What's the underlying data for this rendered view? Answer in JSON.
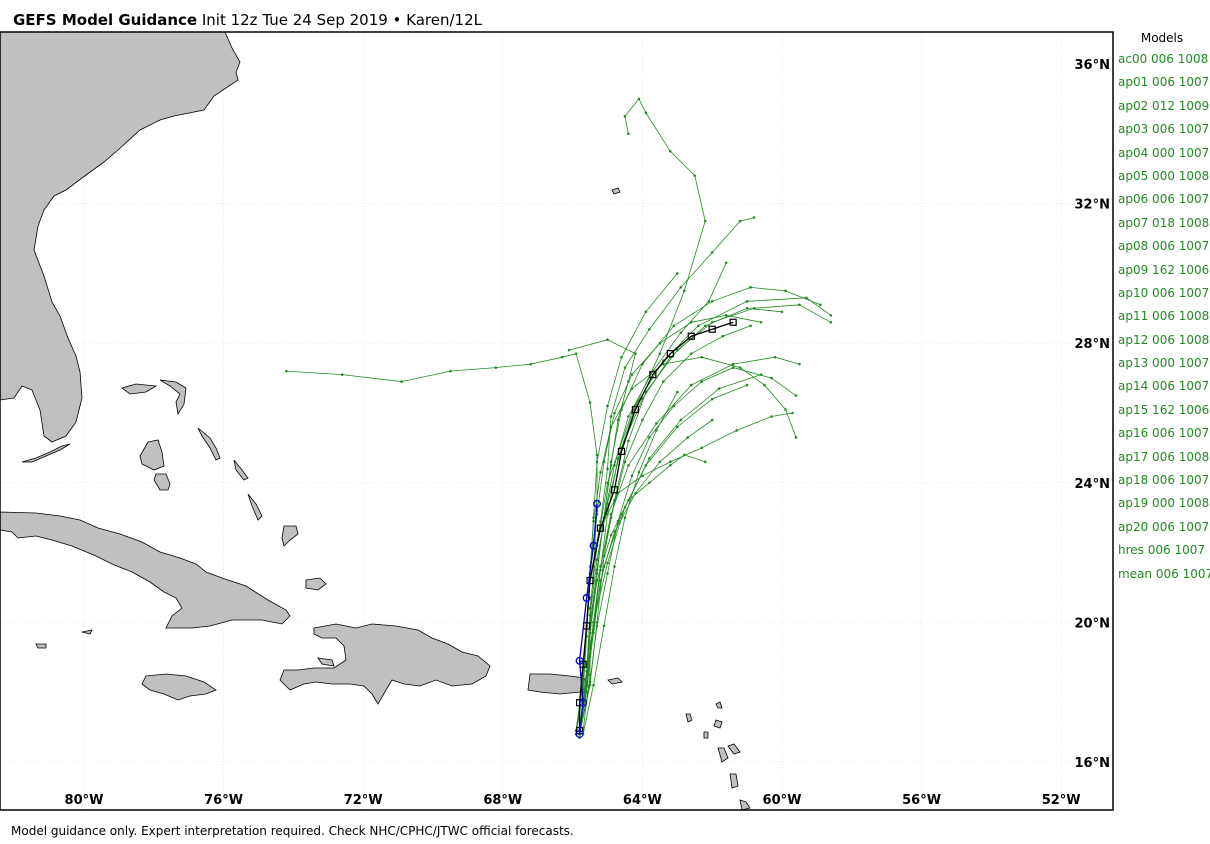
{
  "title": {
    "bold": "GEFS Model Guidance",
    "rest": " Init 12z Tue 24 Sep 2019 • Karen/12L"
  },
  "legend": {
    "header": "Models",
    "entries": [
      "ac00 006 1008",
      "ap01 006 1007",
      "ap02 012 1009",
      "ap03 006 1007",
      "ap04 000 1007",
      "ap05 000 1008",
      "ap06 006 1007",
      "ap07 018 1008",
      "ap08 006 1007",
      "ap09 162 1006",
      "ap10 006 1007",
      "ap11 006 1008",
      "ap12 006 1008",
      "ap13 000 1007",
      "ap14 006 1007",
      "ap15 162 1006",
      "ap16 006 1007",
      "ap17 006 1008",
      "ap18 006 1007",
      "ap19 000 1008",
      "ap20 006 1007",
      "hres 006 1007",
      "mean 006 1007"
    ]
  },
  "footer": "Model guidance only. Expert interpretation required. Check NHC/CPHC/JTWC official forecasts.",
  "colors": {
    "land": "#c0c0c0",
    "ensemble": "#228b22",
    "mean": "#000000",
    "hres": "#0000cd",
    "grid": "#dddddd"
  },
  "map_data": {
    "lon_ticks": [
      -80,
      -76,
      -72,
      -68,
      -64,
      -60,
      -56,
      -52
    ],
    "lon_labels": [
      "80°W",
      "76°W",
      "72°W",
      "68°W",
      "64°W",
      "60°W",
      "56°W",
      "52°W"
    ],
    "lat_ticks": [
      36,
      32,
      28,
      24,
      20,
      16
    ],
    "lat_labels": [
      "36°N",
      "32°N",
      "28°N",
      "24°N",
      "20°N",
      "16°N"
    ],
    "ensemble_tracks": [
      [
        [
          -65.8,
          16.9
        ],
        [
          -65.6,
          18.0
        ],
        [
          -65.4,
          19.8
        ],
        [
          -65.2,
          21.6
        ],
        [
          -64.9,
          23.0
        ],
        [
          -64.5,
          24.6
        ],
        [
          -64.0,
          25.8
        ],
        [
          -63.4,
          26.9
        ],
        [
          -62.6,
          27.7
        ],
        [
          -61.7,
          28.2
        ],
        [
          -60.9,
          28.5
        ]
      ],
      [
        [
          -65.8,
          16.8
        ],
        [
          -65.5,
          18.2
        ],
        [
          -65.3,
          20.0
        ],
        [
          -65.1,
          21.9
        ],
        [
          -64.8,
          23.5
        ],
        [
          -64.4,
          25.2
        ],
        [
          -63.9,
          26.6
        ],
        [
          -63.0,
          27.8
        ],
        [
          -62.0,
          28.6
        ],
        [
          -60.8,
          29.0
        ],
        [
          -59.5,
          29.1
        ],
        [
          -58.6,
          28.6
        ]
      ],
      [
        [
          -65.7,
          16.9
        ],
        [
          -65.5,
          18.5
        ],
        [
          -65.5,
          20.4
        ],
        [
          -65.3,
          22.2
        ],
        [
          -65.0,
          24.0
        ],
        [
          -64.3,
          26.0
        ],
        [
          -63.5,
          27.7
        ],
        [
          -62.8,
          29.5
        ],
        [
          -62.2,
          31.5
        ],
        [
          -62.5,
          32.8
        ],
        [
          -63.2,
          33.5
        ],
        [
          -63.9,
          34.6
        ],
        [
          -64.1,
          35.0
        ],
        [
          -64.5,
          34.5
        ],
        [
          -64.4,
          34.0
        ]
      ],
      [
        [
          -65.9,
          16.8
        ],
        [
          -65.7,
          18.0
        ],
        [
          -65.6,
          19.6
        ],
        [
          -65.5,
          21.2
        ],
        [
          -65.2,
          22.9
        ],
        [
          -65.0,
          24.4
        ],
        [
          -64.9,
          25.9
        ],
        [
          -64.5,
          27.3
        ],
        [
          -63.8,
          28.4
        ],
        [
          -62.9,
          29.6
        ],
        [
          -62.0,
          30.6
        ],
        [
          -61.2,
          31.5
        ],
        [
          -60.8,
          31.6
        ]
      ],
      [
        [
          -65.8,
          16.7
        ],
        [
          -65.6,
          18.3
        ],
        [
          -65.4,
          20.0
        ],
        [
          -65.0,
          21.7
        ],
        [
          -64.5,
          23.3
        ],
        [
          -63.8,
          24.7
        ],
        [
          -62.9,
          25.8
        ],
        [
          -61.8,
          26.7
        ],
        [
          -60.6,
          27.1
        ]
      ],
      [
        [
          -65.8,
          16.9
        ],
        [
          -65.6,
          18.2
        ],
        [
          -65.5,
          19.8
        ],
        [
          -65.3,
          21.4
        ],
        [
          -65.1,
          23.0
        ],
        [
          -64.9,
          24.6
        ],
        [
          -64.6,
          26.1
        ],
        [
          -64.0,
          27.4
        ],
        [
          -63.1,
          28.5
        ],
        [
          -62.0,
          29.2
        ],
        [
          -60.9,
          29.6
        ],
        [
          -59.9,
          29.5
        ],
        [
          -58.9,
          29.1
        ]
      ],
      [
        [
          -65.8,
          17.0
        ],
        [
          -65.6,
          18.6
        ],
        [
          -65.5,
          20.2
        ],
        [
          -65.3,
          21.8
        ],
        [
          -65.0,
          23.4
        ],
        [
          -64.6,
          25.0
        ],
        [
          -64.0,
          26.4
        ],
        [
          -63.2,
          27.6
        ],
        [
          -62.2,
          28.5
        ],
        [
          -61.0,
          29.0
        ],
        [
          -60.0,
          28.9
        ]
      ],
      [
        [
          -65.7,
          16.8
        ],
        [
          -65.4,
          18.2
        ],
        [
          -65.1,
          19.9
        ],
        [
          -64.8,
          21.6
        ],
        [
          -64.5,
          23.0
        ],
        [
          -64.1,
          24.3
        ],
        [
          -63.6,
          25.5
        ],
        [
          -63.0,
          26.6
        ]
      ],
      [
        [
          -65.9,
          16.9
        ],
        [
          -65.7,
          18.4
        ],
        [
          -65.6,
          20.0
        ],
        [
          -65.5,
          21.6
        ],
        [
          -65.3,
          23.1
        ],
        [
          -65.1,
          24.6
        ],
        [
          -64.8,
          26.0
        ],
        [
          -64.3,
          27.1
        ],
        [
          -63.5,
          28.0
        ],
        [
          -62.6,
          28.6
        ],
        [
          -61.6,
          28.8
        ],
        [
          -60.6,
          28.6
        ]
      ],
      [
        [
          -65.8,
          16.8
        ],
        [
          -65.6,
          18.3
        ],
        [
          -65.4,
          19.9
        ],
        [
          -65.2,
          21.5
        ],
        [
          -65.0,
          23.1
        ],
        [
          -64.7,
          24.7
        ],
        [
          -64.2,
          26.2
        ],
        [
          -63.4,
          27.5
        ],
        [
          -62.4,
          28.5
        ],
        [
          -61.0,
          29.2
        ],
        [
          -59.3,
          29.3
        ],
        [
          -58.6,
          28.8
        ]
      ],
      [
        [
          -65.8,
          16.9
        ],
        [
          -65.6,
          18.4
        ],
        [
          -65.4,
          20.0
        ],
        [
          -65.2,
          21.6
        ],
        [
          -64.9,
          23.1
        ],
        [
          -64.4,
          24.5
        ],
        [
          -63.6,
          25.7
        ],
        [
          -62.6,
          26.8
        ],
        [
          -61.4,
          27.4
        ],
        [
          -60.2,
          27.6
        ],
        [
          -59.5,
          27.4
        ]
      ],
      [
        [
          -65.9,
          16.9
        ],
        [
          -65.7,
          18.3
        ],
        [
          -65.6,
          19.9
        ],
        [
          -65.5,
          21.4
        ],
        [
          -65.4,
          23.0
        ],
        [
          -65.3,
          24.6
        ],
        [
          -65.0,
          26.2
        ],
        [
          -64.6,
          27.6
        ],
        [
          -63.9,
          28.9
        ],
        [
          -63.0,
          30.0
        ]
      ],
      [
        [
          -65.8,
          16.8
        ],
        [
          -65.6,
          18.3
        ],
        [
          -65.5,
          19.9
        ],
        [
          -65.3,
          21.5
        ],
        [
          -65.1,
          23.0
        ],
        [
          -64.8,
          24.5
        ],
        [
          -64.4,
          25.9
        ],
        [
          -63.7,
          27.2
        ],
        [
          -62.9,
          28.3
        ],
        [
          -62.1,
          29.2
        ],
        [
          -61.6,
          30.3
        ]
      ],
      [
        [
          -65.8,
          16.8
        ],
        [
          -65.6,
          18.4
        ],
        [
          -65.4,
          20.0
        ],
        [
          -65.1,
          21.6
        ],
        [
          -64.6,
          23.1
        ],
        [
          -63.9,
          24.5
        ],
        [
          -63.0,
          25.6
        ],
        [
          -62.0,
          26.4
        ],
        [
          -61.0,
          26.8
        ]
      ],
      [
        [
          -65.8,
          16.9
        ],
        [
          -65.6,
          18.4
        ],
        [
          -65.5,
          20.0
        ],
        [
          -65.4,
          21.6
        ],
        [
          -65.3,
          23.2
        ],
        [
          -65.3,
          24.8
        ],
        [
          -65.5,
          26.3
        ],
        [
          -65.9,
          27.7
        ],
        [
          -66.3,
          27.6
        ],
        [
          -67.2,
          27.4
        ],
        [
          -68.2,
          27.3
        ],
        [
          -69.5,
          27.2
        ],
        [
          -70.9,
          26.9
        ],
        [
          -72.6,
          27.1
        ],
        [
          -74.2,
          27.2
        ]
      ],
      [
        [
          -65.8,
          16.8
        ],
        [
          -65.5,
          18.3
        ],
        [
          -65.3,
          19.9
        ],
        [
          -65.0,
          21.4
        ],
        [
          -64.7,
          22.9
        ],
        [
          -64.3,
          24.2
        ],
        [
          -63.8,
          25.3
        ],
        [
          -63.1,
          26.2
        ],
        [
          -62.3,
          26.9
        ],
        [
          -61.4,
          27.3
        ],
        [
          -60.3,
          27.0
        ],
        [
          -59.6,
          26.5
        ]
      ],
      [
        [
          -65.9,
          16.9
        ],
        [
          -65.7,
          18.3
        ],
        [
          -65.6,
          19.9
        ],
        [
          -65.5,
          21.4
        ],
        [
          -65.4,
          22.9
        ],
        [
          -65.2,
          24.3
        ],
        [
          -64.9,
          25.6
        ],
        [
          -64.3,
          26.7
        ],
        [
          -63.4,
          27.4
        ],
        [
          -62.3,
          27.6
        ],
        [
          -61.2,
          27.3
        ],
        [
          -60.5,
          26.8
        ],
        [
          -59.9,
          26.1
        ],
        [
          -59.6,
          25.3
        ]
      ],
      [
        [
          -65.8,
          16.8
        ],
        [
          -65.6,
          18.2
        ],
        [
          -65.4,
          19.7
        ],
        [
          -65.2,
          21.2
        ],
        [
          -64.8,
          22.6
        ],
        [
          -64.2,
          23.7
        ],
        [
          -63.5,
          24.6
        ],
        [
          -62.7,
          25.3
        ],
        [
          -62.0,
          25.8
        ]
      ],
      [
        [
          -65.8,
          16.9
        ],
        [
          -65.6,
          18.3
        ],
        [
          -65.5,
          19.9
        ],
        [
          -65.3,
          21.5
        ],
        [
          -65.1,
          23.0
        ],
        [
          -64.9,
          24.5
        ],
        [
          -64.7,
          25.8
        ],
        [
          -64.4,
          26.9
        ],
        [
          -64.2,
          27.7
        ],
        [
          -65.0,
          28.1
        ],
        [
          -66.1,
          27.8
        ]
      ],
      [
        [
          -65.8,
          16.8
        ],
        [
          -65.6,
          18.2
        ],
        [
          -65.5,
          19.7
        ],
        [
          -65.3,
          21.2
        ],
        [
          -64.9,
          22.5
        ],
        [
          -64.4,
          23.5
        ],
        [
          -63.8,
          24.0
        ],
        [
          -63.2,
          24.5
        ],
        [
          -62.8,
          24.8
        ],
        [
          -62.2,
          24.6
        ]
      ],
      [
        [
          -65.9,
          16.8
        ],
        [
          -65.7,
          18.3
        ],
        [
          -65.6,
          19.8
        ],
        [
          -65.5,
          21.3
        ],
        [
          -65.2,
          22.7
        ],
        [
          -64.7,
          23.7
        ],
        [
          -64.0,
          24.2
        ],
        [
          -63.2,
          24.6
        ],
        [
          -62.3,
          25.0
        ],
        [
          -61.3,
          25.5
        ],
        [
          -60.3,
          25.9
        ],
        [
          -59.7,
          26.0
        ]
      ]
    ],
    "mean_track": [
      [
        -65.8,
        16.9
      ],
      [
        -65.8,
        17.7
      ],
      [
        -65.7,
        18.8
      ],
      [
        -65.6,
        19.9
      ],
      [
        -65.5,
        21.2
      ],
      [
        -65.2,
        22.7
      ],
      [
        -64.8,
        23.8
      ],
      [
        -64.6,
        24.9
      ],
      [
        -64.2,
        26.1
      ],
      [
        -63.7,
        27.1
      ],
      [
        -63.2,
        27.7
      ],
      [
        -62.6,
        28.2
      ],
      [
        -62.0,
        28.4
      ],
      [
        -61.4,
        28.6
      ]
    ],
    "hres_track": [
      [
        -65.8,
        16.8
      ],
      [
        -65.7,
        17.7
      ],
      [
        -65.8,
        18.9
      ],
      [
        -65.6,
        20.7
      ],
      [
        -65.4,
        22.2
      ],
      [
        -65.3,
        23.4
      ]
    ]
  }
}
